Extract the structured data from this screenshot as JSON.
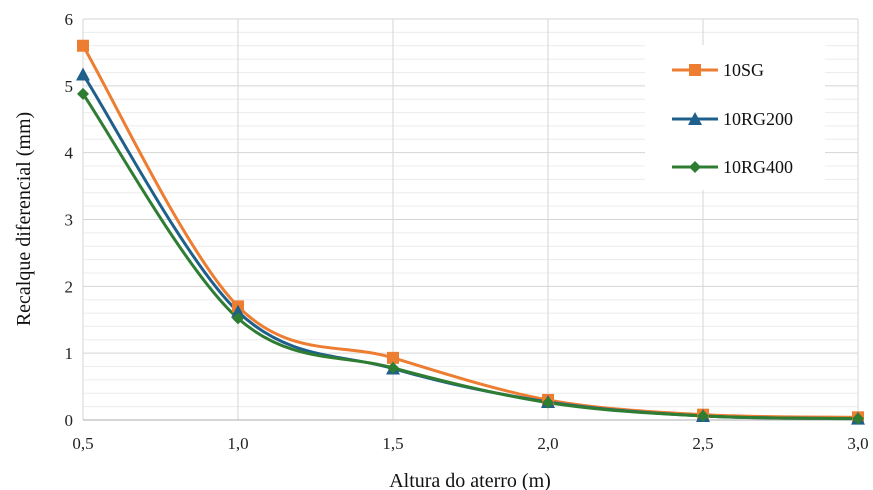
{
  "chart_data": {
    "type": "line",
    "x": [
      0.5,
      1.0,
      1.5,
      2.0,
      2.5,
      3.0
    ],
    "x_tick_labels": [
      "0,5",
      "1,0",
      "1,5",
      "2,0",
      "2,5",
      "3,0"
    ],
    "y_tick_labels": [
      "0",
      "1",
      "2",
      "3",
      "4",
      "5",
      "6"
    ],
    "xlim": [
      0.5,
      3.0
    ],
    "ylim": [
      0,
      6
    ],
    "xlabel": "Altura do aterro (m)",
    "ylabel": "Recalque diferencial (mm)",
    "grid": true,
    "legend_position": "top-right",
    "series": [
      {
        "name": "10SG",
        "marker": "square",
        "color": "#ED7D31",
        "values": [
          5.6,
          1.7,
          0.93,
          0.3,
          0.08,
          0.04
        ]
      },
      {
        "name": "10RG200",
        "marker": "triangle",
        "color": "#1F5F8B",
        "values": [
          5.17,
          1.62,
          0.77,
          0.27,
          0.06,
          0.02
        ]
      },
      {
        "name": "10RG400",
        "marker": "diamond",
        "color": "#2E7D32",
        "values": [
          4.88,
          1.52,
          0.78,
          0.26,
          0.06,
          0.02
        ]
      }
    ]
  }
}
